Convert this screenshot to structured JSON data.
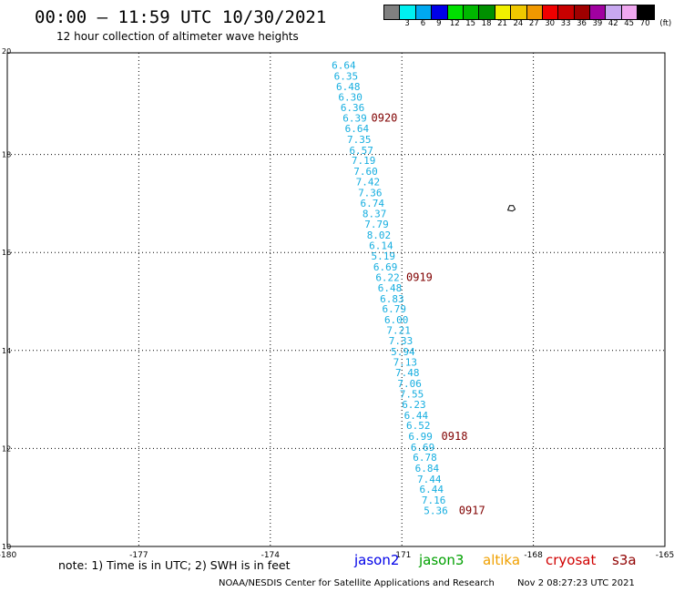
{
  "header": {
    "title": "00:00 – 11:59 UTC 10/30/2021",
    "subtitle": "12 hour collection of altimeter wave heights"
  },
  "legend": {
    "unit": "(ft)",
    "swatches": [
      {
        "color": "#808080",
        "label": ""
      },
      {
        "color": "#00f0f0",
        "label": "3"
      },
      {
        "color": "#00a8f0",
        "label": "6"
      },
      {
        "color": "#0000e8",
        "label": "9"
      },
      {
        "color": "#00e000",
        "label": "12"
      },
      {
        "color": "#00b800",
        "label": "15"
      },
      {
        "color": "#009000",
        "label": "18"
      },
      {
        "color": "#f0f000",
        "label": "21"
      },
      {
        "color": "#f0c800",
        "label": "24"
      },
      {
        "color": "#f09800",
        "label": "27"
      },
      {
        "color": "#f00000",
        "label": "30"
      },
      {
        "color": "#c80000",
        "label": "33"
      },
      {
        "color": "#a00000",
        "label": "36"
      },
      {
        "color": "#a000a0",
        "label": "39"
      },
      {
        "color": "#c8a8f0",
        "label": "42"
      },
      {
        "color": "#f0a8f0",
        "label": "45"
      },
      {
        "color": "#000000",
        "label": "70"
      }
    ]
  },
  "chart_data": {
    "type": "scatter",
    "xlim": [
      -180,
      -165
    ],
    "ylim": [
      10,
      20
    ],
    "x_ticks": [
      "-180",
      "-177",
      "-174",
      "-171",
      "-168",
      "-165"
    ],
    "y_ticks": [
      "10",
      "12",
      "14",
      "16",
      "18",
      "20"
    ],
    "grid": true,
    "points": [
      {
        "x": -172.6,
        "y": 19.82,
        "v": "6.64"
      },
      {
        "x": -172.55,
        "y": 19.6,
        "v": "6.35"
      },
      {
        "x": -172.5,
        "y": 19.39,
        "v": "6.48"
      },
      {
        "x": -172.45,
        "y": 19.17,
        "v": "6.30"
      },
      {
        "x": -172.4,
        "y": 18.96,
        "v": "6.36"
      },
      {
        "x": -172.35,
        "y": 18.75,
        "v": "6.39"
      },
      {
        "x": -172.3,
        "y": 18.53,
        "v": "6.64"
      },
      {
        "x": -172.25,
        "y": 18.31,
        "v": "7.35"
      },
      {
        "x": -172.2,
        "y": 18.09,
        "v": "6.57"
      },
      {
        "x": -172.15,
        "y": 17.88,
        "v": "7.19"
      },
      {
        "x": -172.1,
        "y": 17.66,
        "v": "7.60"
      },
      {
        "x": -172.05,
        "y": 17.44,
        "v": "7.42"
      },
      {
        "x": -172.0,
        "y": 17.22,
        "v": "7.36"
      },
      {
        "x": -171.95,
        "y": 17.01,
        "v": "6.74"
      },
      {
        "x": -171.9,
        "y": 16.79,
        "v": "8.37"
      },
      {
        "x": -171.85,
        "y": 16.58,
        "v": "7.79"
      },
      {
        "x": -171.8,
        "y": 16.36,
        "v": "8.02"
      },
      {
        "x": -171.75,
        "y": 16.14,
        "v": "6.14"
      },
      {
        "x": -171.7,
        "y": 15.93,
        "v": "5.19"
      },
      {
        "x": -171.65,
        "y": 15.71,
        "v": "6.69"
      },
      {
        "x": -171.6,
        "y": 15.49,
        "v": "6.22"
      },
      {
        "x": -171.55,
        "y": 15.28,
        "v": "6.48"
      },
      {
        "x": -171.5,
        "y": 15.06,
        "v": "6.83"
      },
      {
        "x": -171.45,
        "y": 14.85,
        "v": "6.79"
      },
      {
        "x": -171.4,
        "y": 14.63,
        "v": "6.00"
      },
      {
        "x": -171.35,
        "y": 14.41,
        "v": "7.21"
      },
      {
        "x": -171.3,
        "y": 14.2,
        "v": "7.33"
      },
      {
        "x": -171.25,
        "y": 13.98,
        "v": "5.94"
      },
      {
        "x": -171.2,
        "y": 13.76,
        "v": "7.13"
      },
      {
        "x": -171.15,
        "y": 13.55,
        "v": "7.48"
      },
      {
        "x": -171.1,
        "y": 13.33,
        "v": "7.06"
      },
      {
        "x": -171.05,
        "y": 13.11,
        "v": "7.55"
      },
      {
        "x": -171.0,
        "y": 12.9,
        "v": "6.23"
      },
      {
        "x": -170.95,
        "y": 12.68,
        "v": "6.44"
      },
      {
        "x": -170.9,
        "y": 12.47,
        "v": "6.52"
      },
      {
        "x": -170.85,
        "y": 12.25,
        "v": "6.99"
      },
      {
        "x": -170.8,
        "y": 12.03,
        "v": "6.69"
      },
      {
        "x": -170.75,
        "y": 11.82,
        "v": "6.78"
      },
      {
        "x": -170.7,
        "y": 11.6,
        "v": "6.84"
      },
      {
        "x": -170.65,
        "y": 11.38,
        "v": "7.44"
      },
      {
        "x": -170.6,
        "y": 11.17,
        "v": "6.44"
      },
      {
        "x": -170.55,
        "y": 10.95,
        "v": "7.16"
      },
      {
        "x": -170.5,
        "y": 10.73,
        "v": "5.36"
      }
    ],
    "time_labels": [
      {
        "x": -171.7,
        "y": 18.75,
        "label": "0920"
      },
      {
        "x": -170.9,
        "y": 15.49,
        "label": "0919"
      },
      {
        "x": -170.1,
        "y": 12.25,
        "label": "0918"
      },
      {
        "x": -169.7,
        "y": 10.73,
        "label": "0917"
      }
    ],
    "island": {
      "x": -168.5,
      "y": 16.9
    }
  },
  "note": "note: 1) Time is in UTC; 2) SWH is in feet",
  "satellites": [
    {
      "name": "jason2",
      "color": "#0000e8"
    },
    {
      "name": "jason3",
      "color": "#00a000"
    },
    {
      "name": "altika",
      "color": "#f0a000"
    },
    {
      "name": "cryosat",
      "color": "#d00000"
    },
    {
      "name": "s3a",
      "color": "#900000"
    }
  ],
  "footer": {
    "credit": "NOAA/NESDIS Center for Satellite Applications and Research",
    "timestamp": "Nov  2 08:27:23 UTC 2021"
  }
}
